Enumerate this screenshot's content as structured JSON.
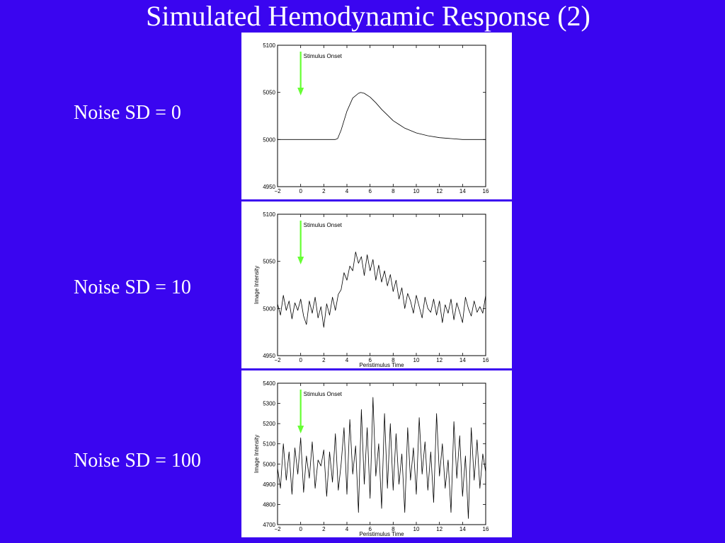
{
  "slide": {
    "title": "Simulated Hemodynamic Response (2)",
    "background": "#3a05f0"
  },
  "rows": [
    {
      "label": "Noise SD = 0"
    },
    {
      "label": "Noise SD = 10"
    },
    {
      "label": "Noise SD = 100"
    }
  ],
  "chart_data": [
    {
      "type": "line",
      "xlabel": "",
      "ylabel": "",
      "xlim": [
        -2,
        16
      ],
      "ylim": [
        4950,
        5100
      ],
      "xticks": [
        -2,
        0,
        2,
        4,
        6,
        8,
        10,
        12,
        14,
        16
      ],
      "yticks": [
        4950,
        5000,
        5050,
        5100
      ],
      "ytick_labels": [
        "4950",
        "5000",
        "5050",
        "5100"
      ],
      "annotation": {
        "text": "Stimulus Onset",
        "x": 0,
        "color": "#66ff33"
      },
      "line_color": "#000000",
      "x": [
        -2,
        -1,
        0,
        1,
        2,
        3,
        3.2,
        3.5,
        4,
        4.5,
        5,
        5.2,
        5.5,
        6,
        6.5,
        7,
        7.5,
        8,
        8.5,
        9,
        10,
        11,
        12,
        13,
        14,
        15,
        16
      ],
      "y": [
        5000,
        5000,
        5000,
        5000,
        5000,
        5000,
        5001,
        5010,
        5030,
        5044,
        5049,
        5050,
        5049,
        5045,
        5039,
        5032,
        5026,
        5020,
        5016,
        5012,
        5007,
        5004,
        5002,
        5001,
        5000,
        5000,
        5000
      ]
    },
    {
      "type": "line",
      "xlabel": "Peristimulus Time",
      "ylabel": "Image Intensity",
      "xlim": [
        -2,
        16
      ],
      "ylim": [
        4950,
        5100
      ],
      "xticks": [
        -2,
        0,
        2,
        4,
        6,
        8,
        10,
        12,
        14,
        16
      ],
      "yticks": [
        4950,
        5000,
        5050,
        5100
      ],
      "ytick_labels": [
        "4950",
        "5000",
        "5050",
        "5100"
      ],
      "annotation": {
        "text": "Stimulus Onset",
        "x": 0,
        "color": "#66ff33"
      },
      "line_color": "#000000",
      "x": [
        -2,
        -1.75,
        -1.5,
        -1.25,
        -1,
        -0.75,
        -0.5,
        -0.25,
        0,
        0.25,
        0.5,
        0.75,
        1,
        1.25,
        1.5,
        1.75,
        2,
        2.25,
        2.5,
        2.75,
        3,
        3.25,
        3.5,
        3.75,
        4,
        4.25,
        4.5,
        4.75,
        5,
        5.25,
        5.5,
        5.75,
        6,
        6.25,
        6.5,
        6.75,
        7,
        7.25,
        7.5,
        7.75,
        8,
        8.25,
        8.5,
        8.75,
        9,
        9.25,
        9.5,
        9.75,
        10,
        10.25,
        10.5,
        10.75,
        11,
        11.25,
        11.5,
        11.75,
        12,
        12.25,
        12.5,
        12.75,
        13,
        13.25,
        13.5,
        13.75,
        14,
        14.25,
        14.5,
        14.75,
        15,
        15.25,
        15.5,
        15.75,
        16
      ],
      "y": [
        5005,
        4993,
        5014,
        4998,
        5008,
        4989,
        5006,
        4998,
        5010,
        4992,
        4983,
        5008,
        4995,
        5012,
        4990,
        5002,
        4980,
        5005,
        4993,
        5012,
        4998,
        5015,
        5020,
        5038,
        5030,
        5045,
        5040,
        5060,
        5048,
        5055,
        5035,
        5057,
        5040,
        5052,
        5030,
        5046,
        5028,
        5040,
        5024,
        5036,
        5018,
        5030,
        5010,
        5022,
        5000,
        5016,
        5008,
        4995,
        5014,
        5002,
        4990,
        5012,
        5000,
        4996,
        5010,
        4993,
        5008,
        4985,
        5004,
        4995,
        5010,
        4988,
        5006,
        4996,
        4985,
        5012,
        5000,
        4992,
        5008,
        4996,
        5002,
        4995,
        5014
      ]
    },
    {
      "type": "line",
      "xlabel": "Peristimulus Time",
      "ylabel": "Image Intensity",
      "xlim": [
        -2,
        16
      ],
      "ylim": [
        4700,
        5400
      ],
      "xticks": [
        -2,
        0,
        2,
        4,
        6,
        8,
        10,
        12,
        14,
        16
      ],
      "yticks": [
        4700,
        4800,
        4900,
        5000,
        5100,
        5200,
        5300,
        5400
      ],
      "ytick_labels": [
        "4700",
        "4800",
        "4900",
        "5000",
        "5100",
        "5200",
        "5300",
        "5400"
      ],
      "annotation": {
        "text": "Stimulus Onset",
        "x": 0,
        "color": "#66ff33"
      },
      "line_color": "#000000",
      "x": [
        -2,
        -1.75,
        -1.5,
        -1.25,
        -1,
        -0.75,
        -0.5,
        -0.25,
        0,
        0.25,
        0.5,
        0.75,
        1,
        1.25,
        1.5,
        1.75,
        2,
        2.25,
        2.5,
        2.75,
        3,
        3.25,
        3.5,
        3.75,
        4,
        4.25,
        4.5,
        4.75,
        5,
        5.25,
        5.5,
        5.75,
        6,
        6.25,
        6.5,
        6.75,
        7,
        7.25,
        7.5,
        7.75,
        8,
        8.25,
        8.5,
        8.75,
        9,
        9.25,
        9.5,
        9.75,
        10,
        10.25,
        10.5,
        10.75,
        11,
        11.25,
        11.5,
        11.75,
        12,
        12.25,
        12.5,
        12.75,
        13,
        13.25,
        13.5,
        13.75,
        14,
        14.25,
        14.5,
        14.75,
        15,
        15.25,
        15.5,
        15.75,
        16
      ],
      "y": [
        4980,
        4880,
        5100,
        4920,
        5060,
        4850,
        5080,
        4950,
        5130,
        4860,
        5040,
        4930,
        5110,
        4880,
        5020,
        4990,
        5070,
        4840,
        5060,
        4910,
        5150,
        4870,
        5000,
        5180,
        4850,
        5220,
        4950,
        5090,
        4760,
        5270,
        4900,
        5180,
        4830,
        5330,
        4940,
        5100,
        4780,
        5250,
        4880,
        5200,
        4870,
        5150,
        4900,
        5050,
        4760,
        5180,
        4920,
        5080,
        4850,
        5230,
        4950,
        5110,
        4870,
        5060,
        4810,
        5250,
        4940,
        5100,
        4880,
        5020,
        4760,
        5210,
        4930,
        5140,
        4840,
        5040,
        4730,
        5180,
        4920,
        5120,
        4880,
        5050,
        4960
      ]
    }
  ]
}
